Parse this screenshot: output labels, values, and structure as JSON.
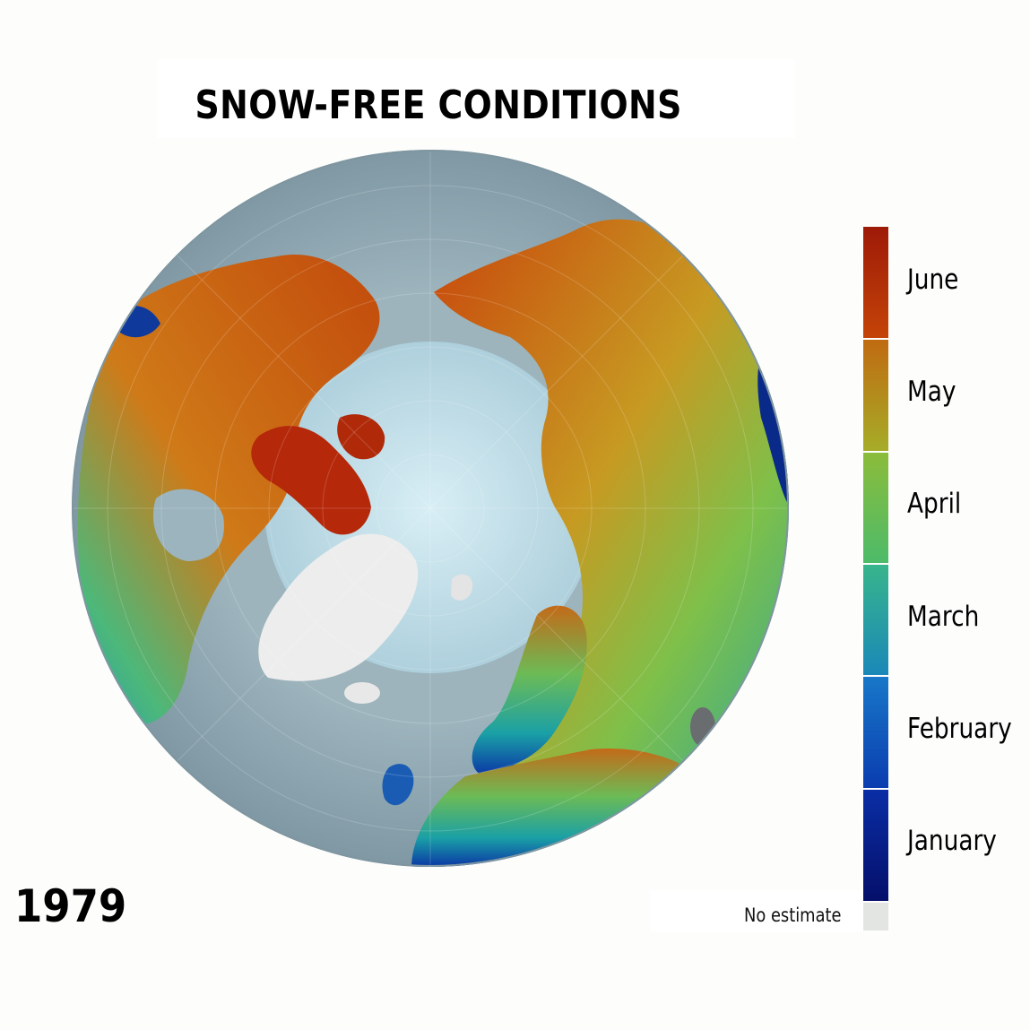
{
  "title": "SNOW-FREE CONDITIONS",
  "year": "1979",
  "legend": {
    "months": [
      {
        "label": "June",
        "colors": [
          "#9e1a08",
          "#c44408"
        ]
      },
      {
        "label": "May",
        "colors": [
          "#c06a10",
          "#a6ad28"
        ]
      },
      {
        "label": "April",
        "colors": [
          "#8cbc3a",
          "#4cbb6a"
        ]
      },
      {
        "label": "March",
        "colors": [
          "#38b58c",
          "#1a88b8"
        ]
      },
      {
        "label": "February",
        "colors": [
          "#1878c8",
          "#0a3cb0"
        ]
      },
      {
        "label": "January",
        "colors": [
          "#0a2ea6",
          "#050f6a"
        ]
      }
    ],
    "no_estimate": {
      "label": "No estimate",
      "color": "#e3e5e3"
    }
  },
  "map": {
    "ocean_color": "#8fa7b2",
    "arctic_ice_color": "#c7e2ec",
    "greenland_color": "#ededed"
  }
}
